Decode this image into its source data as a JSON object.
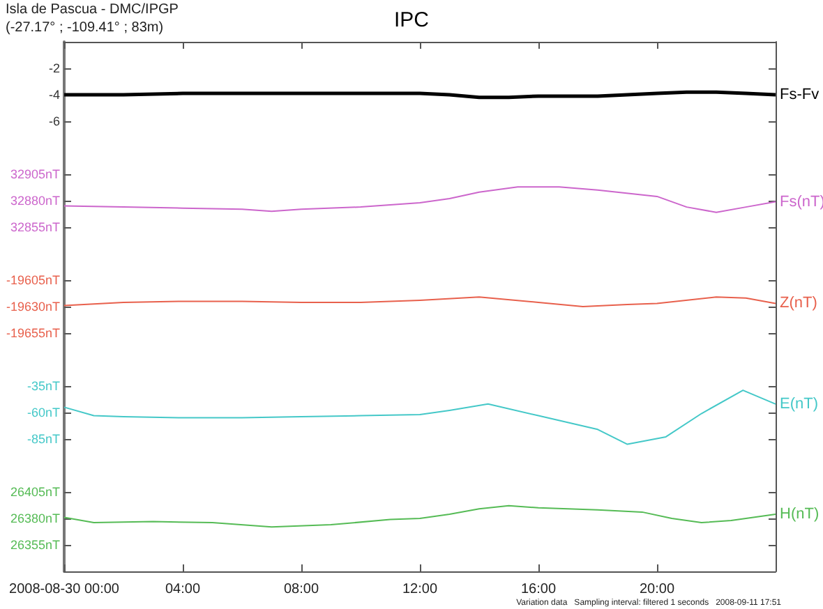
{
  "chart_data": [
    {
      "type": "line",
      "title": "IPC",
      "annotations": [
        "Isla de Pascua - DMC/IPGP",
        "(-27.17° ; -109.41° ; 83m)"
      ],
      "x": [
        0,
        2,
        4,
        6,
        8,
        10,
        12,
        13,
        14,
        15,
        16,
        18,
        20,
        21,
        22,
        23,
        24
      ],
      "xlim": [
        0,
        24
      ],
      "xticks": [
        0,
        4,
        8,
        12,
        16,
        20
      ],
      "ylim": [
        -8,
        0
      ],
      "yticks": [
        -2,
        -4,
        -6
      ],
      "tick_labels": "y",
      "series": [
        {
          "name": "Fs-Fv",
          "color": "#000000",
          "values": [
            -4.0,
            -4.0,
            -3.9,
            -3.9,
            -3.9,
            -3.9,
            -3.9,
            -4.0,
            -4.2,
            -4.2,
            -4.1,
            -4.1,
            -3.9,
            -3.8,
            -3.8,
            -3.9,
            -4.0
          ]
        }
      ]
    },
    {
      "type": "line",
      "x": [
        0,
        2,
        4,
        6,
        7,
        8,
        10,
        12,
        13,
        14,
        15.3,
        16.7,
        18,
        20,
        21,
        22,
        23,
        24
      ],
      "xlim": [
        0,
        24
      ],
      "ylim": [
        32830,
        32930
      ],
      "yticks": [
        {
          "value": 32905,
          "label": "32905nT"
        },
        {
          "value": 32880,
          "label": "32880nT"
        },
        {
          "value": 32855,
          "label": "32855nT"
        }
      ],
      "tick_labels": "y",
      "series": [
        {
          "name": "Fs(nT)",
          "color": "#cc66cc",
          "values": [
            32875,
            32874,
            32873,
            32872,
            32870,
            32872,
            32874,
            32878,
            32882,
            32888,
            32893,
            32893,
            32890,
            32884,
            32874,
            32869,
            32874,
            32879
          ]
        }
      ]
    },
    {
      "type": "line",
      "x": [
        0,
        2,
        4,
        6,
        8,
        10,
        12,
        14,
        16,
        17.5,
        19,
        20,
        22,
        23,
        24
      ],
      "xlim": [
        0,
        24
      ],
      "ylim": [
        -19680,
        -19580
      ],
      "yticks": [
        {
          "value": -19605,
          "label": "-19605nT"
        },
        {
          "value": -19630,
          "label": "-19630nT"
        },
        {
          "value": -19655,
          "label": "-19655nT"
        }
      ],
      "tick_labels": "y",
      "series": [
        {
          "name": "Z(nT)",
          "color": "#e8604c",
          "values": [
            -19629,
            -19626,
            -19625,
            -19625,
            -19626,
            -19626,
            -19624,
            -19621,
            -19626,
            -19630,
            -19628,
            -19627,
            -19621,
            -19622,
            -19627
          ]
        }
      ]
    },
    {
      "type": "line",
      "x": [
        0,
        1,
        2,
        4,
        6,
        8,
        10,
        12,
        13,
        14.3,
        16,
        18,
        19,
        20.3,
        21.5,
        22.9,
        24
      ],
      "xlim": [
        0,
        24
      ],
      "ylim": [
        -110,
        -10
      ],
      "yticks": [
        {
          "value": -35,
          "label": "-35nT"
        },
        {
          "value": -60,
          "label": "-60nT"
        },
        {
          "value": -85,
          "label": "-85nT"
        }
      ],
      "tick_labels": "y",
      "series": [
        {
          "name": "E(nT)",
          "color": "#44c8c8",
          "values": [
            -55,
            -63,
            -64,
            -65,
            -65,
            -64,
            -63,
            -62,
            -58,
            -52,
            -63,
            -76,
            -90,
            -83,
            -61,
            -39,
            -52
          ]
        }
      ]
    },
    {
      "type": "line",
      "annotations": [
        "Variation data   Sampling interval: filtered 1 seconds   2008-09-11 17:51"
      ],
      "x": [
        0,
        1,
        3,
        5,
        7,
        9,
        11,
        12,
        13,
        14,
        15,
        16,
        18,
        19.5,
        20.5,
        21.5,
        22.5,
        24
      ],
      "xlim": [
        0,
        24
      ],
      "xticks": [
        {
          "value": 0,
          "label": "2008-08-30 00:00"
        },
        {
          "value": 4,
          "label": "04:00"
        },
        {
          "value": 8,
          "label": "08:00"
        },
        {
          "value": 12,
          "label": "12:00"
        },
        {
          "value": 16,
          "label": "16:00"
        },
        {
          "value": 20,
          "label": "20:00"
        }
      ],
      "ylim": [
        26330,
        26430
      ],
      "yticks": [
        {
          "value": 26405,
          "label": "26405nT"
        },
        {
          "value": 26380,
          "label": "26380nT"
        },
        {
          "value": 26355,
          "label": "26355nT"
        }
      ],
      "series": [
        {
          "name": "H(nT)",
          "color": "#55bb55",
          "values": [
            26381,
            26376,
            26377,
            26376,
            26372,
            26374,
            26379,
            26380,
            26384,
            26389,
            26392,
            26390,
            26388,
            26386,
            26380,
            26376,
            26378,
            26384
          ]
        }
      ]
    }
  ]
}
